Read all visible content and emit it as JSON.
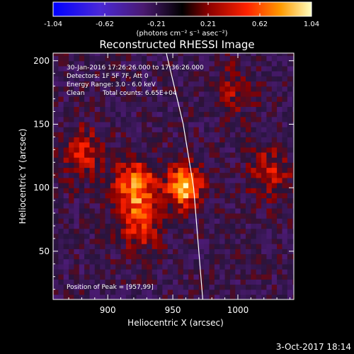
{
  "chart_data": {
    "type": "heatmap",
    "title": "Reconstructed RHESSI Image",
    "xlabel": "Heliocentric X (arcsec)",
    "ylabel": "Heliocentric Y (arcsec)",
    "xlim": [
      858,
      1043
    ],
    "ylim": [
      12,
      206
    ],
    "x_ticks": [
      900,
      950,
      1000
    ],
    "y_ticks": [
      50,
      100,
      150,
      200
    ],
    "colorbar": {
      "ticks": [
        "-1.04",
        "-0.62",
        "-0.21",
        "0.21",
        "0.62",
        "1.04"
      ],
      "range": [
        -1.04,
        1.04
      ],
      "units_label": "(photons cm⁻² s⁻¹ asec⁻²)"
    },
    "annotations": {
      "time_range": "30-Jan-2016 17:26:26.000 to 17:36:26.000",
      "detectors": "Detectors: 1F 5F 7F, Att 0",
      "energy": "Energy Range: 3.0 - 6.0 keV",
      "clean": "Clean",
      "counts": "Total counts: 6.65E+04",
      "peak": "Position of Peak = [957,99]"
    },
    "sources": [
      {
        "x": 957,
        "y": 99,
        "peak": 1.04
      },
      {
        "x": 920,
        "y": 100,
        "peak": 0.78
      },
      {
        "x": 922,
        "y": 70,
        "peak": 0.55
      },
      {
        "x": 880,
        "y": 125,
        "peak": 0.45
      },
      {
        "x": 1022,
        "y": 110,
        "peak": 0.45
      },
      {
        "x": 995,
        "y": 175,
        "peak": 0.3
      }
    ],
    "limb": [
      [
        945,
        206
      ],
      [
        958,
        150
      ],
      [
        966,
        100
      ],
      [
        970,
        50
      ],
      [
        973,
        12
      ]
    ],
    "footer": "3-Oct-2017 18:14"
  }
}
